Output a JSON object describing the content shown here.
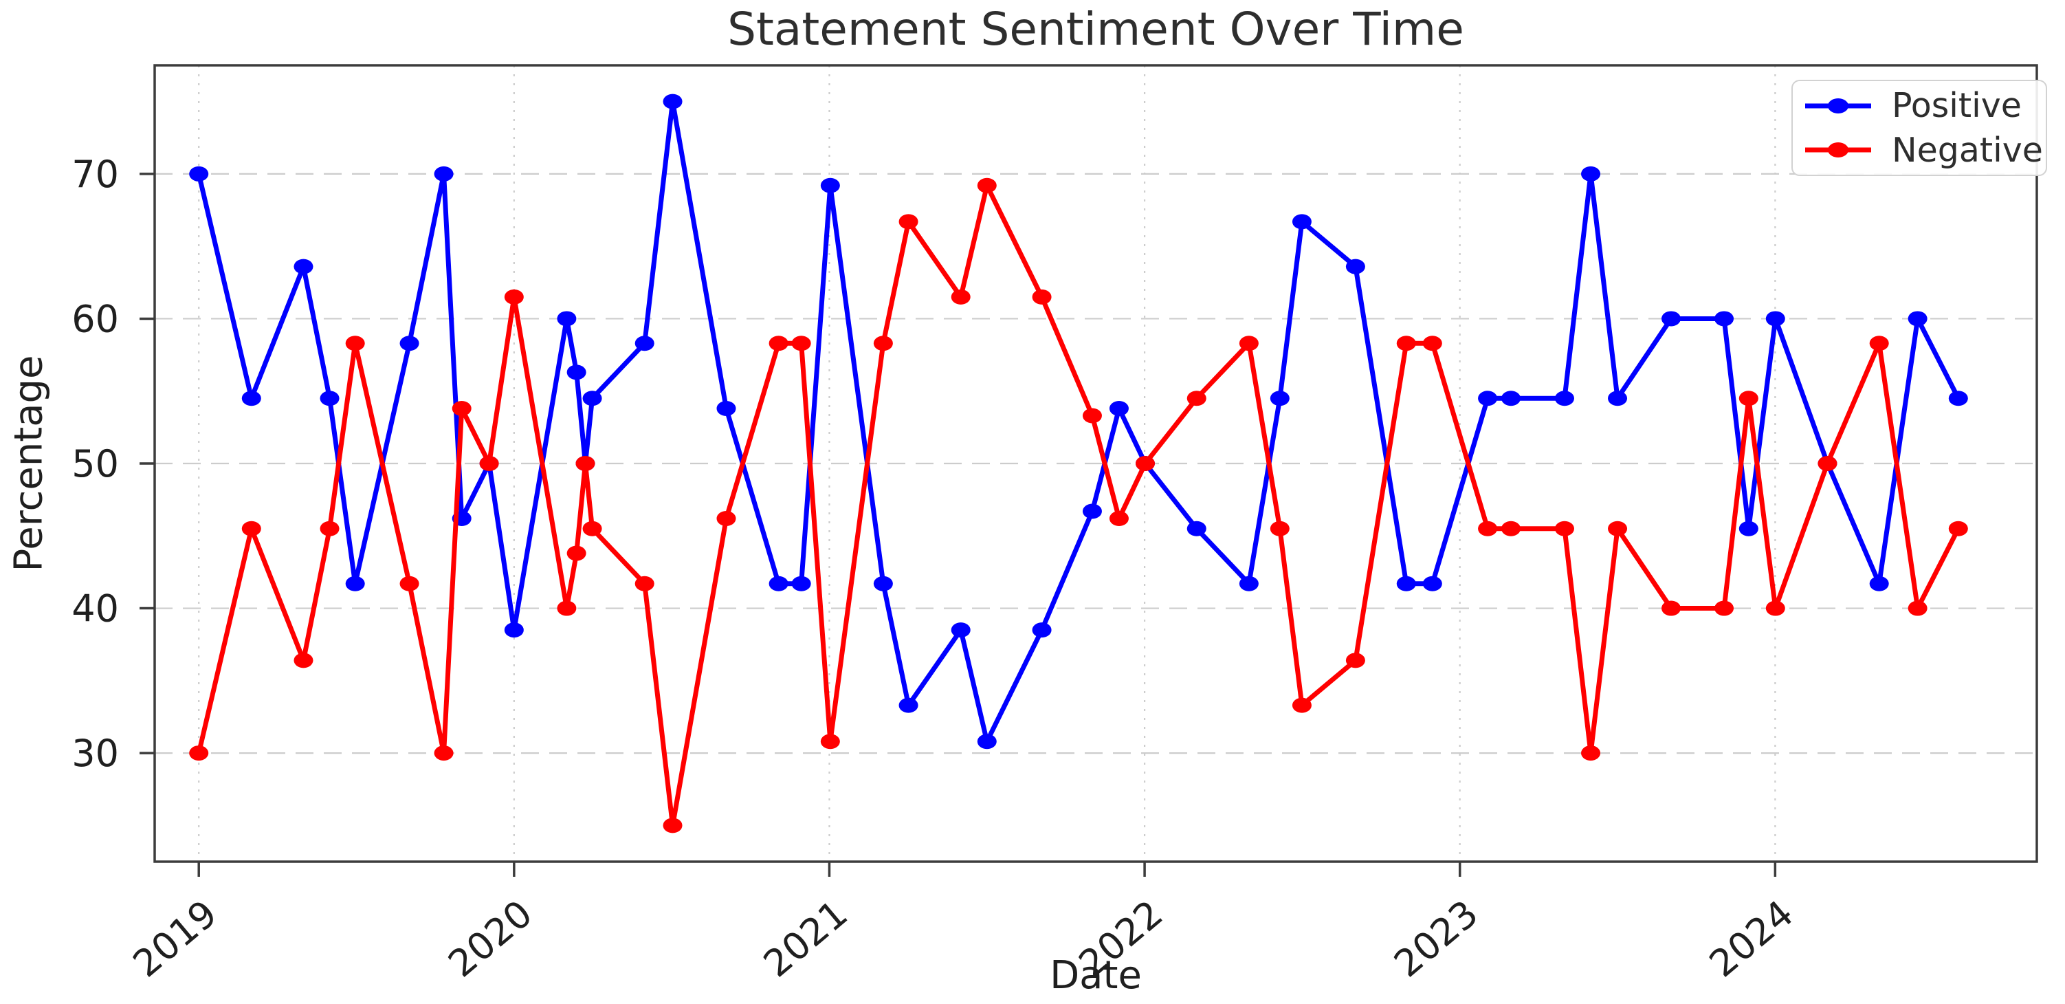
{
  "chart_data": {
    "type": "line",
    "title": "Statement Sentiment Over Time",
    "xlabel": "Date",
    "ylabel": "Percentage",
    "grid": true,
    "legend_position": "upper right",
    "xlim": [
      2018.86,
      2024.83
    ],
    "ylim": [
      22.5,
      77.5
    ],
    "xticks": [
      2019,
      2020,
      2021,
      2022,
      2023,
      2024
    ],
    "yticks": [
      30,
      40,
      50,
      60,
      70
    ],
    "x": [
      2019.0,
      2019.167,
      2019.332,
      2019.415,
      2019.496,
      2019.668,
      2019.777,
      2019.834,
      2019.921,
      2020.0,
      2020.167,
      2020.198,
      2020.226,
      2020.248,
      2020.414,
      2020.503,
      2020.673,
      2020.839,
      2020.911,
      2021.003,
      2021.171,
      2021.251,
      2021.417,
      2021.5,
      2021.674,
      2021.834,
      2021.919,
      2022.002,
      2022.165,
      2022.331,
      2022.429,
      2022.499,
      2022.669,
      2022.83,
      2022.913,
      2023.088,
      2023.162,
      2023.332,
      2023.415,
      2023.5,
      2023.67,
      2023.838,
      2023.916,
      2024.001,
      2024.166,
      2024.33,
      2024.452,
      2024.581
    ],
    "series": [
      {
        "name": "Positive",
        "color": "#0000ff",
        "values": [
          70,
          54.5,
          63.6,
          54.5,
          41.7,
          58.3,
          70,
          46.2,
          50,
          38.5,
          60,
          56.3,
          50,
          54.5,
          58.3,
          75,
          53.8,
          41.7,
          41.7,
          69.2,
          41.7,
          33.3,
          38.5,
          30.8,
          38.5,
          46.7,
          53.8,
          50,
          45.5,
          41.7,
          54.5,
          66.7,
          63.6,
          41.7,
          41.7,
          54.5,
          54.5,
          54.5,
          70,
          54.5,
          60,
          60,
          45.5,
          60,
          50,
          41.7,
          60,
          54.5
        ]
      },
      {
        "name": "Negative",
        "color": "#ff0000",
        "values": [
          30,
          45.5,
          36.4,
          45.5,
          58.3,
          41.7,
          30,
          53.8,
          50,
          61.5,
          40,
          43.8,
          50,
          45.5,
          41.7,
          25,
          46.2,
          58.3,
          58.3,
          30.8,
          58.3,
          66.7,
          61.5,
          69.2,
          61.5,
          53.3,
          46.2,
          50,
          54.5,
          58.3,
          45.5,
          33.3,
          36.4,
          58.3,
          58.3,
          45.5,
          45.5,
          45.5,
          30,
          45.5,
          40,
          40,
          54.5,
          40,
          50,
          58.3,
          40,
          45.5
        ]
      }
    ]
  }
}
